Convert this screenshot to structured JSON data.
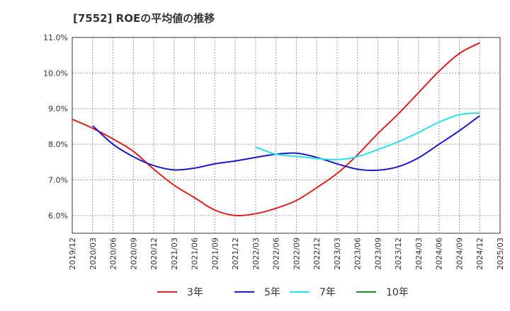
{
  "chart_data": {
    "type": "line",
    "title": "[7552]  ROEの平均値の推移",
    "xlabel": "",
    "ylabel": "",
    "x_ticks": [
      "2019/12",
      "2020/03",
      "2020/06",
      "2020/09",
      "2020/12",
      "2021/03",
      "2021/06",
      "2021/09",
      "2021/12",
      "2022/03",
      "2022/06",
      "2022/09",
      "2022/12",
      "2023/03",
      "2023/06",
      "2023/09",
      "2023/12",
      "2024/03",
      "2024/06",
      "2024/09",
      "2024/12",
      "2025/03"
    ],
    "y_ticks": [
      "6.0%",
      "7.0%",
      "8.0%",
      "9.0%",
      "10.0%",
      "11.0%"
    ],
    "ylim": [
      5.5,
      11.0
    ],
    "grid": true,
    "legend_position": "bottom",
    "series": [
      {
        "name": "3年",
        "color": "#e02020",
        "x": [
          "2019/12",
          "2020/03",
          "2020/06",
          "2020/09",
          "2020/12",
          "2021/03",
          "2021/06",
          "2021/09",
          "2021/12",
          "2022/03",
          "2022/06",
          "2022/09",
          "2022/12",
          "2023/03",
          "2023/06",
          "2023/09",
          "2023/12",
          "2024/03",
          "2024/06",
          "2024/09",
          "2024/12"
        ],
        "values": [
          8.7,
          8.45,
          8.15,
          7.8,
          7.3,
          6.85,
          6.5,
          6.15,
          6.0,
          6.05,
          6.2,
          6.42,
          6.78,
          7.18,
          7.7,
          8.3,
          8.85,
          9.45,
          10.05,
          10.55,
          10.85
        ]
      },
      {
        "name": "5年",
        "color": "#1a1acc",
        "x": [
          "2020/03",
          "2020/06",
          "2020/09",
          "2020/12",
          "2021/03",
          "2021/06",
          "2021/09",
          "2021/12",
          "2022/03",
          "2022/06",
          "2022/09",
          "2022/12",
          "2023/03",
          "2023/06",
          "2023/09",
          "2023/12",
          "2024/03",
          "2024/06",
          "2024/09",
          "2024/12"
        ],
        "values": [
          8.52,
          8.0,
          7.65,
          7.4,
          7.28,
          7.33,
          7.45,
          7.53,
          7.63,
          7.72,
          7.75,
          7.63,
          7.45,
          7.3,
          7.27,
          7.37,
          7.62,
          8.0,
          8.38,
          8.8
        ]
      },
      {
        "name": "7年",
        "color": "#22e5ee",
        "x": [
          "2022/03",
          "2022/06",
          "2022/09",
          "2022/12",
          "2023/03",
          "2023/06",
          "2023/09",
          "2023/12",
          "2024/03",
          "2024/06",
          "2024/09",
          "2024/12"
        ],
        "values": [
          7.92,
          7.72,
          7.66,
          7.6,
          7.57,
          7.65,
          7.85,
          8.07,
          8.33,
          8.62,
          8.83,
          8.88
        ]
      },
      {
        "name": "10年",
        "color": "#1f8a1f",
        "x": [],
        "values": []
      }
    ]
  }
}
